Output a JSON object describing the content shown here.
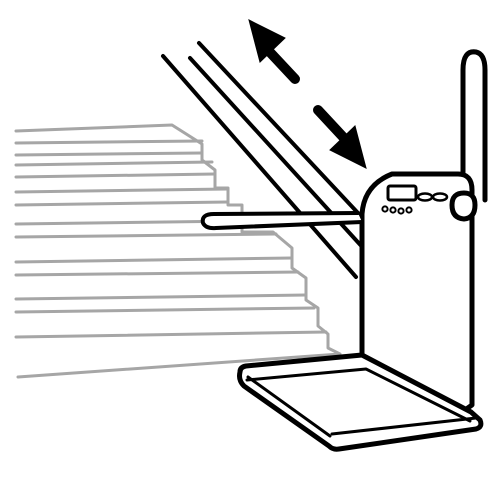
{
  "illustration": {
    "subject": "platform-stair-lift",
    "colors": {
      "background": "#ffffff",
      "ink": "#000000",
      "stairs": "#a6a6a6"
    },
    "icons": {
      "direction": "up-down-arrows-icon",
      "control_panel": "control-panel-icon"
    }
  }
}
